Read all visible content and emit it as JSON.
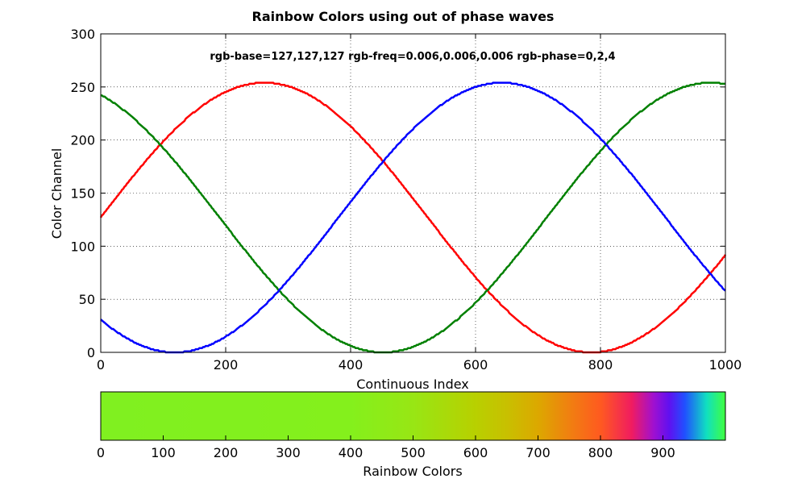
{
  "chart_data": {
    "type": "line",
    "title": "Rainbow Colors using out of phase waves",
    "annotation": "rgb-base=127,127,127 rgb-freq=0.006,0.006,0.006 rgb-phase=0,2,4",
    "xlabel": "Continuous Index",
    "ylabel": "Color Channel",
    "xlim": [
      0,
      1000
    ],
    "ylim": [
      0,
      300
    ],
    "xticks": [
      "0",
      "200",
      "400",
      "600",
      "800",
      "1000"
    ],
    "yticks": [
      "0",
      "50",
      "100",
      "150",
      "200",
      "250",
      "300"
    ],
    "grid": true,
    "series": [
      {
        "name": "red",
        "color": "#ff0000",
        "base": 127,
        "amplitude": 127,
        "freq": 0.006,
        "phase": 0
      },
      {
        "name": "green",
        "color": "#008000",
        "base": 127,
        "amplitude": 127,
        "freq": 0.006,
        "phase": 2
      },
      {
        "name": "blue",
        "color": "#0000ff",
        "base": 127,
        "amplitude": 127,
        "freq": 0.006,
        "phase": 4
      }
    ],
    "colorbar": {
      "label": "Rainbow Colors",
      "range": [
        0,
        1000
      ],
      "ticks": [
        "0",
        "100",
        "200",
        "300",
        "400",
        "500",
        "600",
        "700",
        "800",
        "900"
      ],
      "stops": [
        {
          "at": 0,
          "color": "#80f020"
        },
        {
          "at": 400,
          "color": "#84f01c"
        },
        {
          "at": 500,
          "color": "#98e614"
        },
        {
          "at": 600,
          "color": "#b8d000"
        },
        {
          "at": 650,
          "color": "#c8c000"
        },
        {
          "at": 700,
          "color": "#dca800"
        },
        {
          "at": 750,
          "color": "#f08010"
        },
        {
          "at": 800,
          "color": "#ff5a20"
        },
        {
          "at": 850,
          "color": "#f01c60"
        },
        {
          "at": 885,
          "color": "#a010d0"
        },
        {
          "at": 910,
          "color": "#6010f0"
        },
        {
          "at": 935,
          "color": "#2050ff"
        },
        {
          "at": 970,
          "color": "#10e0c0"
        },
        {
          "at": 1000,
          "color": "#40ff40"
        }
      ]
    }
  }
}
